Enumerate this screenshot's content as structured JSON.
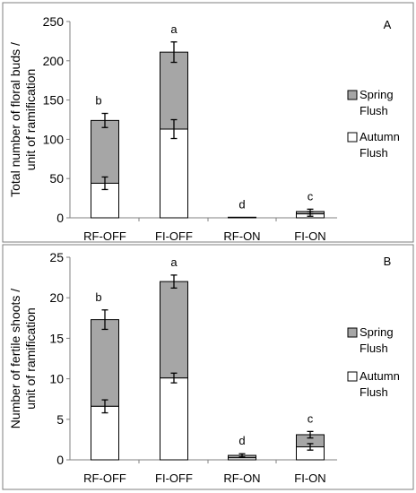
{
  "colors": {
    "spring": "#a6a6a6",
    "autumn": "#ffffff",
    "stroke": "#000000",
    "frame": "#7f7f7f"
  },
  "chart_data": [
    {
      "type": "bar",
      "stacked": true,
      "panel_label": "A",
      "ylabel": "Total number of floral buds / unit of ramification",
      "categories": [
        "RF-OFF",
        "FI-OFF",
        "RF-ON",
        "FI-ON"
      ],
      "ylim": [
        0,
        250
      ],
      "yticks": [
        0,
        50,
        100,
        150,
        200,
        250
      ],
      "series": [
        {
          "name": "Autumn Flush",
          "key": "autumn",
          "values": [
            44,
            113,
            0.5,
            5
          ],
          "errors": [
            8,
            12,
            0,
            3
          ]
        },
        {
          "name": "Spring Flush",
          "key": "spring",
          "values": [
            80,
            98,
            0.3,
            3
          ],
          "errors": [
            9,
            13,
            0,
            3
          ]
        }
      ],
      "letters": [
        "b",
        "a",
        "d",
        "c"
      ],
      "legend": [
        {
          "line1": "Spring",
          "line2": "Flush",
          "key": "spring"
        },
        {
          "line1": "Autumn",
          "line2": "Flush",
          "key": "autumn"
        }
      ],
      "legend_position": "right",
      "grid": false
    },
    {
      "type": "bar",
      "stacked": true,
      "panel_label": "B",
      "ylabel": "Number of fertile shoots / unit of ramification",
      "categories": [
        "RF-OFF",
        "FI-OFF",
        "RF-ON",
        "FI-ON"
      ],
      "ylim": [
        0,
        25
      ],
      "yticks": [
        0,
        5,
        10,
        15,
        20,
        25
      ],
      "series": [
        {
          "name": "Autumn Flush",
          "key": "autumn",
          "values": [
            6.6,
            10.1,
            0.25,
            1.6
          ],
          "errors": [
            0.8,
            0.6,
            0,
            0.4
          ]
        },
        {
          "name": "Spring Flush",
          "key": "spring",
          "values": [
            10.7,
            11.9,
            0.3,
            1.5
          ],
          "errors": [
            1.2,
            0.8,
            0.2,
            0.4
          ]
        }
      ],
      "letters": [
        "b",
        "a",
        "d",
        "c"
      ],
      "legend": [
        {
          "line1": "Spring",
          "line2": "Flush",
          "key": "spring"
        },
        {
          "line1": "Autumn",
          "line2": "Flush",
          "key": "autumn"
        }
      ],
      "legend_position": "right",
      "grid": false
    }
  ]
}
